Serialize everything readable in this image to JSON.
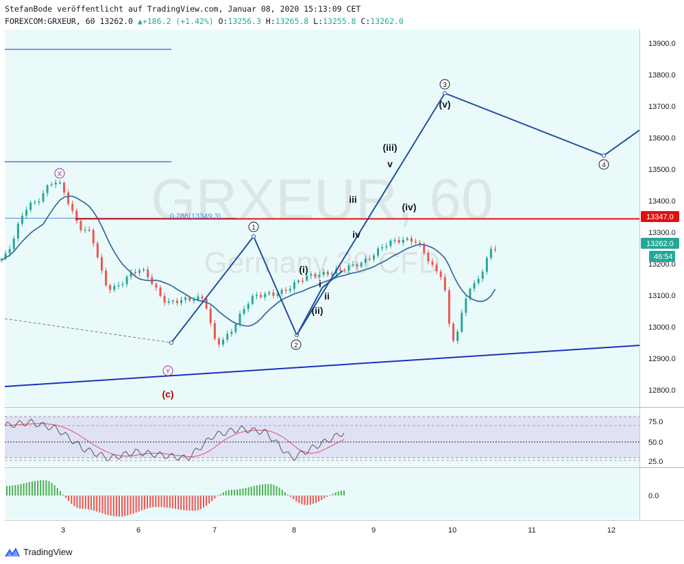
{
  "header": {
    "line1": "StefanBode veröffentlicht auf TradingView.com, Januar 08, 2020 15:13:09 CET",
    "symbol": "FOREXCOM:GRXEUR, 60",
    "last": "13262.0",
    "change": "+186.2 (+1.42%)",
    "o_label": "O:",
    "o_value": "13256.3",
    "h_label": "H:",
    "h_value": "13265.8",
    "l_label": "L:",
    "l_value": "13255.8",
    "c_label": "C:",
    "c_value": "13262.0"
  },
  "watermark": {
    "symbol": "GRXEUR, 60",
    "name": "Germany 30 CFD"
  },
  "colors": {
    "pane_bg": "#eafafa",
    "up": "#26a69a",
    "down": "#ef5350",
    "wave_line": "#1f4fa0",
    "trend_line": "#1a2fc0",
    "red_line": "#e01010",
    "ma_line": "#3a6fa0",
    "rsi_band": "#dcdcf4",
    "text": "#131722"
  },
  "price_axis": {
    "labels": [
      "13900.0",
      "13800.0",
      "13700.0",
      "13600.0",
      "13500.0",
      "13400.0",
      "13300.0",
      "13200.0",
      "13100.0",
      "13000.0",
      "12900.0",
      "12800.0"
    ],
    "badge_red": "13347.0",
    "badge_last": "13262.0",
    "badge_timer": "46:54"
  },
  "time_axis": {
    "labels": [
      "3",
      "6",
      "7",
      "8",
      "9",
      "10",
      "11",
      "12"
    ]
  },
  "fib": {
    "label": "0.786(13349.3)"
  },
  "rsi": {
    "labels": [
      "75.0",
      "50.0",
      "25.0"
    ]
  },
  "macd": {
    "labels": [
      "0.0"
    ]
  },
  "wave_labels": {
    "x": "X",
    "y": "Y",
    "c": "(c)",
    "w1": "1",
    "w2": "2",
    "w3": "3",
    "w4": "4",
    "i_p": "(i)",
    "ii_p": "(ii)",
    "iii_p": "(iii)",
    "iv_p": "(iv)",
    "v_p": "(v)",
    "i": "i",
    "ii": "ii",
    "iii": "iii",
    "iv": "iv",
    "v": "v"
  },
  "footer": {
    "brand": "TradingView"
  },
  "chart_data": {
    "type": "line",
    "title": "FOREXCOM:GRXEUR, 60",
    "xlabel": "",
    "ylabel": "",
    "ylim": [
      12740,
      13960
    ],
    "grid": false,
    "price_candles_approx": [
      {
        "x": 2.2,
        "close": 13220
      },
      {
        "x": 2.6,
        "close": 13400
      },
      {
        "x": 2.9,
        "close": 13460
      },
      {
        "x": 3.3,
        "close": 13310
      },
      {
        "x": 3.6,
        "close": 13130
      },
      {
        "x": 4.0,
        "close": 13180
      },
      {
        "x": 4.4,
        "close": 13080
      },
      {
        "x": 4.8,
        "close": 13100
      },
      {
        "x": 5.0,
        "close": 12950
      },
      {
        "x": 5.5,
        "close": 13100
      },
      {
        "x": 6.5,
        "close": 13180
      },
      {
        "x": 7.5,
        "close": 13285
      },
      {
        "x": 7.9,
        "close": 13170
      },
      {
        "x": 8.05,
        "close": 12970
      },
      {
        "x": 8.3,
        "close": 13130
      },
      {
        "x": 8.6,
        "close": 13262
      }
    ],
    "wave_path": [
      {
        "x": 6.45,
        "y": 12945,
        "label": "(c) / Y"
      },
      {
        "x": 7.5,
        "y": 13290,
        "label": "1"
      },
      {
        "x": 8.0,
        "y": 12970,
        "label": "2"
      },
      {
        "x": 9.9,
        "y": 13738,
        "label": "3"
      },
      {
        "x": 11.9,
        "y": 13545,
        "label": "4"
      },
      {
        "x": 12.5,
        "y": 13620
      }
    ],
    "horizontal_levels": [
      {
        "label": "0.786(13349.3)",
        "value": 13349.3
      },
      {
        "value": 13347.0
      }
    ],
    "trendline": [
      {
        "x": 2.0,
        "y": 12810
      },
      {
        "x": 12.5,
        "y": 12945
      }
    ],
    "series": [
      {
        "name": "RSI",
        "values_approx": [
          75,
          80,
          70,
          40,
          25,
          35,
          30,
          25,
          60,
          70,
          65,
          25,
          45,
          65
        ]
      },
      {
        "name": "MACD histogram",
        "values_approx": [
          50,
          80,
          -70,
          -110,
          -60,
          -80,
          30,
          60,
          -50,
          25
        ]
      }
    ]
  }
}
